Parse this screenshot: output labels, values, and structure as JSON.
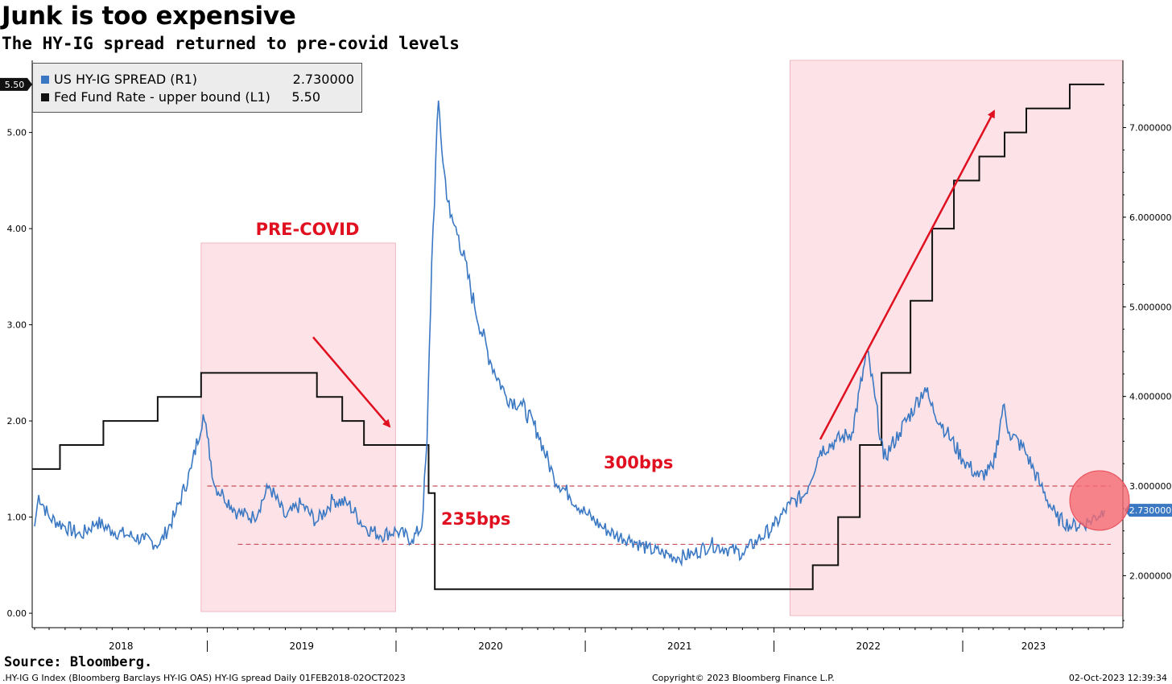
{
  "header": {
    "title": "Junk is too expensive",
    "subtitle": "The HY-IG spread returned to pre-covid levels"
  },
  "legend": [
    {
      "name": "US HY-IG SPREAD (R1)",
      "value": "2.730000",
      "color": "#3a78c3"
    },
    {
      "name": "Fed Fund Rate - upper bound (L1)",
      "value": "5.50",
      "color": "#111111"
    }
  ],
  "annotations": {
    "pre_covid": "PRE-COVID",
    "level_300": "300bps",
    "level_235": "235bps"
  },
  "footer": {
    "source": "Source: Bloomberg.",
    "left": ".HY-IG G Index (Bloomberg Barclays HY-IG OAS) HY-IG spread  Daily 01FEB2018-02OCT2023",
    "center": "Copyright© 2023 Bloomberg Finance L.P.",
    "right": "02-Oct-2023 12:39:34"
  },
  "colors": {
    "spread": "#3a78c3",
    "fed": "#111111",
    "shade": "#fde3e7",
    "annotation": "#e01020",
    "dashed": "#c8505a"
  },
  "chart_data": {
    "type": "line",
    "x_range": [
      "2018-02-01",
      "2023-10-02"
    ],
    "x_ticks": [
      "2018",
      "2019",
      "2020",
      "2021",
      "2022",
      "2023"
    ],
    "left_axis": {
      "ticks": [
        "0.00",
        "1.00",
        "2.00",
        "3.00",
        "4.00",
        "5.00"
      ],
      "ylim": [
        -0.15,
        5.75
      ],
      "last_value_label": "5.50"
    },
    "right_axis": {
      "ticks": [
        "2.000000",
        "3.000000",
        "4.000000",
        "5.000000",
        "6.000000",
        "7.000000"
      ],
      "ylim": [
        1.42,
        7.75
      ],
      "last_value_label": "2.730000"
    },
    "series": [
      {
        "name": "Fed Fund Rate - upper bound (L1)",
        "axis": "left",
        "step": true,
        "x": [
          "2018-02-01",
          "2018-03-22",
          "2018-06-14",
          "2018-09-27",
          "2018-12-20",
          "2019-08-01",
          "2019-09-19",
          "2019-10-31",
          "2020-03-04",
          "2020-03-16",
          "2022-03-17",
          "2022-05-05",
          "2022-06-16",
          "2022-07-28",
          "2022-09-22",
          "2022-11-03",
          "2022-12-15",
          "2023-02-02",
          "2023-03-23",
          "2023-05-04",
          "2023-07-27",
          "2023-10-02"
        ],
        "values": [
          1.5,
          1.75,
          2.0,
          2.25,
          2.5,
          2.25,
          2.0,
          1.75,
          1.25,
          0.25,
          0.5,
          1.0,
          1.75,
          2.5,
          3.25,
          4.0,
          4.5,
          4.75,
          5.0,
          5.25,
          5.5,
          5.5
        ]
      },
      {
        "name": "US HY-IG SPREAD (R1)",
        "axis": "right",
        "x": [
          "2018-02-01",
          "2018-02-09",
          "2018-03-01",
          "2018-04-01",
          "2018-05-01",
          "2018-06-01",
          "2018-07-01",
          "2018-08-01",
          "2018-09-01",
          "2018-10-01",
          "2018-11-01",
          "2018-12-01",
          "2018-12-24",
          "2019-01-01",
          "2019-01-15",
          "2019-02-01",
          "2019-03-01",
          "2019-04-01",
          "2019-05-01",
          "2019-06-01",
          "2019-07-01",
          "2019-08-01",
          "2019-09-01",
          "2019-10-01",
          "2019-11-01",
          "2019-12-01",
          "2020-01-01",
          "2020-02-01",
          "2020-02-20",
          "2020-03-01",
          "2020-03-10",
          "2020-03-23",
          "2020-04-01",
          "2020-04-15",
          "2020-05-01",
          "2020-06-01",
          "2020-07-01",
          "2020-08-01",
          "2020-09-01",
          "2020-10-01",
          "2020-11-01",
          "2020-12-01",
          "2021-01-01",
          "2021-02-01",
          "2021-03-01",
          "2021-04-01",
          "2021-05-01",
          "2021-06-01",
          "2021-07-01",
          "2021-08-01",
          "2021-09-01",
          "2021-10-01",
          "2021-11-01",
          "2021-12-01",
          "2022-01-01",
          "2022-02-01",
          "2022-03-01",
          "2022-04-01",
          "2022-05-01",
          "2022-06-01",
          "2022-06-30",
          "2022-07-15",
          "2022-08-01",
          "2022-09-01",
          "2022-10-01",
          "2022-10-20",
          "2022-11-01",
          "2022-12-01",
          "2023-01-01",
          "2023-02-01",
          "2023-03-01",
          "2023-03-20",
          "2023-04-01",
          "2023-05-01",
          "2023-06-01",
          "2023-07-01",
          "2023-08-01",
          "2023-09-01",
          "2023-10-02"
        ],
        "values": [
          2.55,
          2.9,
          2.65,
          2.55,
          2.45,
          2.6,
          2.5,
          2.45,
          2.4,
          2.35,
          2.7,
          3.2,
          3.8,
          3.55,
          3.0,
          2.9,
          2.7,
          2.65,
          3.0,
          2.65,
          2.8,
          2.6,
          2.85,
          2.8,
          2.55,
          2.45,
          2.5,
          2.4,
          2.55,
          3.5,
          5.5,
          7.3,
          6.6,
          6.0,
          5.8,
          5.0,
          4.4,
          4.0,
          3.9,
          3.6,
          3.1,
          2.9,
          2.7,
          2.55,
          2.45,
          2.4,
          2.3,
          2.25,
          2.2,
          2.25,
          2.35,
          2.3,
          2.25,
          2.4,
          2.55,
          2.8,
          2.9,
          3.4,
          3.5,
          3.6,
          4.5,
          4.0,
          3.3,
          3.6,
          3.9,
          4.1,
          3.9,
          3.6,
          3.3,
          3.1,
          3.2,
          3.9,
          3.6,
          3.4,
          3.0,
          2.65,
          2.55,
          2.6,
          2.73
        ]
      }
    ],
    "reference_lines": [
      {
        "label": "300bps",
        "axis": "right",
        "value": 3.0
      },
      {
        "label": "235bps",
        "axis": "right",
        "value": 2.35
      }
    ],
    "shaded_ranges": [
      {
        "label": "PRE-COVID",
        "x": [
          "2018-12-20",
          "2019-12-31"
        ]
      },
      {
        "label": "",
        "x": [
          "2022-02-01",
          "2023-10-02"
        ]
      }
    ],
    "legend_position": "top-left",
    "grid": false
  }
}
